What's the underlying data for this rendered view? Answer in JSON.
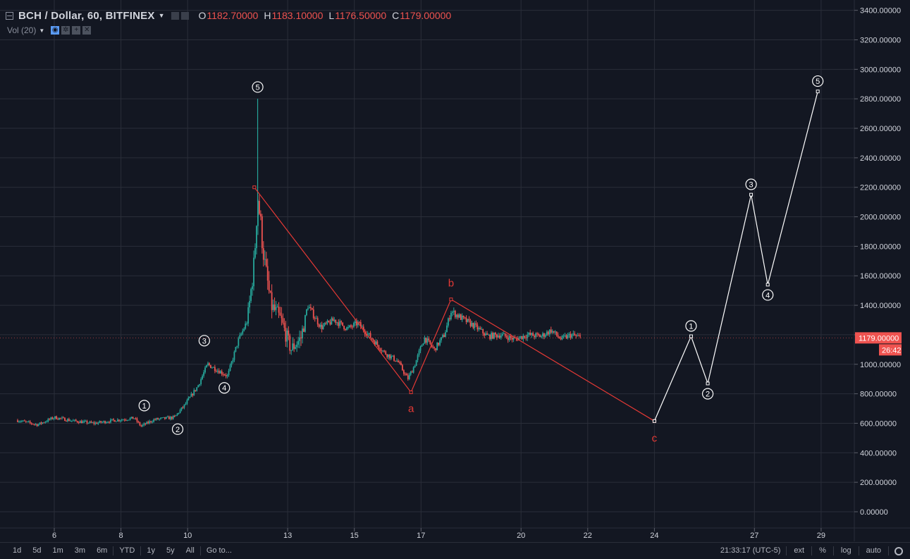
{
  "header": {
    "symbol": "BCH / Dollar, 60, BITFINEX",
    "o_label": "O",
    "o_value": "1182.70000",
    "h_label": "H",
    "h_value": "1183.10000",
    "l_label": "L",
    "l_value": "1176.50000",
    "c_label": "C",
    "c_value": "1179.00000"
  },
  "volume_indicator": {
    "label": "Vol (20)"
  },
  "price_tag": {
    "value": "1179.00000",
    "countdown": "26:42"
  },
  "toolbar": {
    "ranges": [
      "1d",
      "5d",
      "1m",
      "3m",
      "6m",
      "YTD",
      "1y",
      "5y",
      "All"
    ],
    "goto_label": "Go to...",
    "time": "21:33:17 (UTC-5)",
    "ext_label": "ext",
    "percent_label": "%",
    "log_label": "log",
    "auto_label": "auto"
  },
  "colors": {
    "background": "#131722",
    "grid": "#2a2e39",
    "up": "#26a69a",
    "down": "#ef5350",
    "wave_red": "#e53935",
    "wave_white": "#ffffff"
  },
  "chart_data": {
    "type": "line",
    "title": "BCH / Dollar, 60, BITFINEX",
    "x_ticks": [
      "6",
      "8",
      "10",
      "13",
      "15",
      "17",
      "20",
      "22",
      "24",
      "27",
      "29"
    ],
    "y_ticks": [
      "0.00000",
      "200.00000",
      "400.00000",
      "600.00000",
      "800.00000",
      "1000.00000",
      "1200.00000",
      "1400.00000",
      "1600.00000",
      "1800.00000",
      "2000.00000",
      "2200.00000",
      "2400.00000",
      "2600.00000",
      "2800.00000",
      "3000.00000",
      "3200.00000",
      "3400.00000"
    ],
    "ylim": [
      -110,
      3470
    ],
    "grid": true,
    "price_series": [
      {
        "day": 4.9,
        "price": 620
      },
      {
        "day": 5.5,
        "price": 590
      },
      {
        "day": 6.0,
        "price": 640
      },
      {
        "day": 6.6,
        "price": 615
      },
      {
        "day": 7.2,
        "price": 600
      },
      {
        "day": 7.8,
        "price": 620
      },
      {
        "day": 8.4,
        "price": 635
      },
      {
        "day": 8.6,
        "price": 580
      },
      {
        "day": 9.0,
        "price": 625
      },
      {
        "day": 9.6,
        "price": 640
      },
      {
        "day": 9.9,
        "price": 720
      },
      {
        "day": 10.3,
        "price": 850
      },
      {
        "day": 10.6,
        "price": 1000
      },
      {
        "day": 10.9,
        "price": 960
      },
      {
        "day": 11.2,
        "price": 920
      },
      {
        "day": 11.5,
        "price": 1150
      },
      {
        "day": 11.8,
        "price": 1300
      },
      {
        "day": 12.0,
        "price": 1700
      },
      {
        "day": 12.1,
        "price": 2150
      },
      {
        "day": 12.3,
        "price": 1700
      },
      {
        "day": 12.5,
        "price": 1400
      },
      {
        "day": 12.8,
        "price": 1300
      },
      {
        "day": 13.1,
        "price": 1100
      },
      {
        "day": 13.4,
        "price": 1180
      },
      {
        "day": 13.6,
        "price": 1400
      },
      {
        "day": 14.0,
        "price": 1250
      },
      {
        "day": 14.4,
        "price": 1300
      },
      {
        "day": 14.8,
        "price": 1240
      },
      {
        "day": 15.1,
        "price": 1280
      },
      {
        "day": 15.5,
        "price": 1180
      },
      {
        "day": 15.9,
        "price": 1080
      },
      {
        "day": 16.3,
        "price": 1020
      },
      {
        "day": 16.6,
        "price": 900
      },
      {
        "day": 16.8,
        "price": 990
      },
      {
        "day": 17.1,
        "price": 1180
      },
      {
        "day": 17.4,
        "price": 1100
      },
      {
        "day": 17.7,
        "price": 1200
      },
      {
        "day": 17.9,
        "price": 1360
      },
      {
        "day": 18.3,
        "price": 1300
      },
      {
        "day": 18.6,
        "price": 1260
      },
      {
        "day": 19.0,
        "price": 1190
      },
      {
        "day": 19.4,
        "price": 1200
      },
      {
        "day": 19.8,
        "price": 1170
      },
      {
        "day": 20.2,
        "price": 1200
      },
      {
        "day": 20.6,
        "price": 1190
      },
      {
        "day": 20.9,
        "price": 1230
      },
      {
        "day": 21.2,
        "price": 1170
      },
      {
        "day": 21.5,
        "price": 1200
      },
      {
        "day": 21.8,
        "price": 1179
      }
    ],
    "spike_high": {
      "day": 12.1,
      "price": 2800
    },
    "last_price": 1179.0,
    "annotations": {
      "impulse_labels": [
        {
          "label": "1",
          "day": 8.7,
          "price": 720
        },
        {
          "label": "2",
          "day": 9.7,
          "price": 560
        },
        {
          "label": "3",
          "day": 10.5,
          "price": 1160
        },
        {
          "label": "4",
          "day": 11.1,
          "price": 840
        },
        {
          "label": "5",
          "day": 12.1,
          "price": 2880
        }
      ],
      "correction_path": [
        {
          "day": 12.0,
          "price": 2200
        },
        {
          "day": 16.7,
          "price": 810
        },
        {
          "day": 17.9,
          "price": 1440
        },
        {
          "day": 24.0,
          "price": 615
        }
      ],
      "correction_labels": [
        {
          "label": "a",
          "day": 16.7,
          "price": 700
        },
        {
          "label": "b",
          "day": 17.9,
          "price": 1550
        },
        {
          "label": "c",
          "day": 24.0,
          "price": 500
        }
      ],
      "projection_path": [
        {
          "day": 24.0,
          "price": 615
        },
        {
          "day": 25.1,
          "price": 1190
        },
        {
          "day": 25.6,
          "price": 870
        },
        {
          "day": 26.9,
          "price": 2150
        },
        {
          "day": 27.4,
          "price": 1540
        },
        {
          "day": 28.9,
          "price": 2850
        }
      ],
      "projection_labels": [
        {
          "label": "1",
          "day": 25.1,
          "price": 1260
        },
        {
          "label": "2",
          "day": 25.6,
          "price": 800
        },
        {
          "label": "3",
          "day": 26.9,
          "price": 2220
        },
        {
          "label": "4",
          "day": 27.4,
          "price": 1470
        },
        {
          "label": "5",
          "day": 28.9,
          "price": 2920
        }
      ]
    }
  }
}
